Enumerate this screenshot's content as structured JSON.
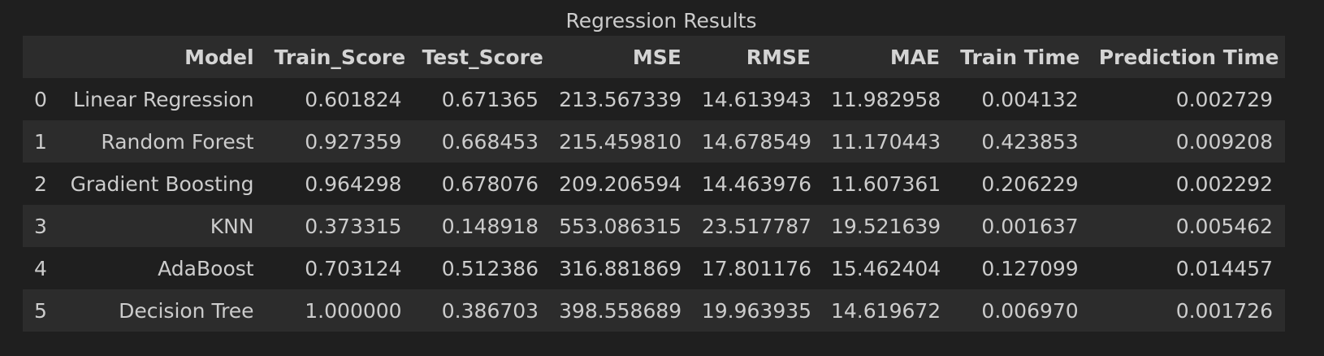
{
  "table": {
    "caption": "Regression Results",
    "index_header": "",
    "columns": [
      "Model",
      "Train_Score",
      "Test_Score",
      "MSE",
      "RMSE",
      "MAE",
      "Train Time",
      "Prediction Time"
    ],
    "rows": [
      {
        "index": "0",
        "cells": [
          "Linear Regression",
          "0.601824",
          "0.671365",
          "213.567339",
          "14.613943",
          "11.982958",
          "0.004132",
          "0.002729"
        ]
      },
      {
        "index": "1",
        "cells": [
          "Random Forest",
          "0.927359",
          "0.668453",
          "215.459810",
          "14.678549",
          "11.170443",
          "0.423853",
          "0.009208"
        ]
      },
      {
        "index": "2",
        "cells": [
          "Gradient Boosting",
          "0.964298",
          "0.678076",
          "209.206594",
          "14.463976",
          "11.607361",
          "0.206229",
          "0.002292"
        ]
      },
      {
        "index": "3",
        "cells": [
          "KNN",
          "0.373315",
          "0.148918",
          "553.086315",
          "23.517787",
          "19.521639",
          "0.001637",
          "0.005462"
        ]
      },
      {
        "index": "4",
        "cells": [
          "AdaBoost",
          "0.703124",
          "0.512386",
          "316.881869",
          "17.801176",
          "15.462404",
          "0.127099",
          "0.014457"
        ]
      },
      {
        "index": "5",
        "cells": [
          "Decision Tree",
          "1.000000",
          "0.386703",
          "398.558689",
          "19.963935",
          "14.619672",
          "0.006970",
          "0.001726"
        ]
      }
    ]
  }
}
